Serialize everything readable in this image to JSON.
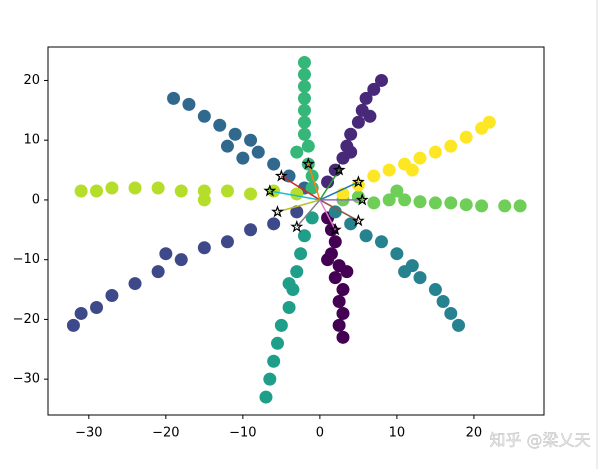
{
  "chart_data": {
    "type": "scatter",
    "xlim": [
      -35.3,
      29.1
    ],
    "ylim": [
      -36.0,
      25.6
    ],
    "xticks": [
      {
        "value": -30,
        "label": "−30"
      },
      {
        "value": -20,
        "label": "−20"
      },
      {
        "value": -10,
        "label": "−10"
      },
      0,
      10,
      20
    ],
    "yticks": [
      {
        "value": -30,
        "label": "−30"
      },
      {
        "value": -20,
        "label": "−20"
      },
      {
        "value": -10,
        "label": "−10"
      },
      0,
      10,
      20
    ],
    "series": [
      {
        "color": "#440154",
        "x": [
          1,
          1.5,
          2,
          1.5,
          2.5,
          2,
          3,
          2.5,
          3,
          2.5,
          3,
          1,
          3.5
        ],
        "y": [
          -3,
          -5,
          -7,
          -9,
          -11,
          -13,
          -15,
          -17,
          -19,
          -21,
          -23,
          -10,
          -12
        ]
      },
      {
        "color": "#482878",
        "x": [
          1,
          2,
          3,
          3.5,
          4,
          5,
          5.5,
          6,
          7,
          8,
          4,
          6.5
        ],
        "y": [
          3,
          5,
          7,
          9,
          11,
          13,
          15,
          17,
          18.5,
          20,
          8,
          14
        ]
      },
      {
        "color": "#3e4989",
        "x": [
          -3,
          -6,
          -9,
          -12,
          -15,
          -18,
          -21,
          -24,
          -27,
          -29,
          -31,
          -32,
          -20
        ],
        "y": [
          -2,
          -4,
          -5,
          -7,
          -8,
          -10,
          -12,
          -14,
          -16,
          -18,
          -19,
          -21,
          -9
        ]
      },
      {
        "color": "#31688e",
        "x": [
          -2,
          -4,
          -6,
          -8,
          -9,
          -11,
          -13,
          -15,
          -17,
          -19,
          -12,
          -10
        ],
        "y": [
          2,
          4,
          6,
          8,
          10,
          11,
          12.5,
          14,
          16,
          17,
          9,
          7
        ]
      },
      {
        "color": "#26828e",
        "x": [
          2,
          4,
          6,
          8,
          10,
          12,
          13,
          15,
          16,
          17,
          18,
          11
        ],
        "y": [
          -2,
          -4,
          -6,
          -7,
          -9,
          -11,
          -13,
          -15,
          -17,
          -19,
          -21,
          -12
        ]
      },
      {
        "color": "#1f9e89",
        "x": [
          -1,
          -2,
          -2.5,
          -3,
          -3.5,
          -4,
          -5,
          -5.5,
          -6,
          -6.5,
          -7,
          -4
        ],
        "y": [
          -3,
          -6,
          -9,
          -12,
          -15,
          -18,
          -21,
          -24,
          -27,
          -30,
          -33,
          -14
        ]
      },
      {
        "color": "#35b779",
        "x": [
          -1,
          -1,
          -1.5,
          -1.5,
          -2,
          -2,
          -2,
          -2,
          -2,
          -2,
          -2,
          -3
        ],
        "y": [
          2,
          4,
          6,
          9,
          11,
          13,
          15,
          17,
          19,
          21,
          23,
          8
        ]
      },
      {
        "color": "#6ece58",
        "x": [
          3,
          5,
          7,
          9,
          11,
          13,
          15,
          17,
          19,
          21,
          24,
          26,
          10
        ],
        "y": [
          0,
          0.5,
          -0.5,
          0,
          0,
          -0.3,
          -0.5,
          -0.5,
          -0.8,
          -1,
          -1,
          -1,
          1.5
        ]
      },
      {
        "color": "#b5de2b",
        "x": [
          -3,
          -6,
          -9,
          -12,
          -15,
          -18,
          -21,
          -24,
          -27,
          -29,
          -31,
          -15
        ],
        "y": [
          1,
          1.5,
          1,
          1.5,
          1.5,
          1.5,
          2,
          2,
          2,
          1.5,
          1.5,
          0
        ]
      },
      {
        "color": "#fde725",
        "x": [
          3,
          5,
          7,
          9,
          11,
          13,
          15,
          17,
          19,
          21,
          22,
          12
        ],
        "y": [
          1,
          2.5,
          4,
          5,
          6,
          7,
          8,
          9,
          10.5,
          12,
          13,
          5
        ]
      }
    ],
    "centers": {
      "marker": "star",
      "color": "#000000",
      "x": [
        -5,
        -1.5,
        2.5,
        5,
        5.5,
        5,
        2,
        -3,
        -5.5,
        -6.5
      ],
      "y": [
        4,
        6,
        5,
        3,
        0,
        -3.5,
        -5,
        -4.5,
        -2,
        1.5
      ],
      "line_colors": [
        "#d62728",
        "#ff7f0e",
        "#2ca02c",
        "#1f77b4",
        "#9467bd",
        "#8c564b",
        "#e377c2",
        "#7f7f7f",
        "#bcbd22",
        "#17becf"
      ]
    }
  },
  "watermark": "知乎 @梁乂天"
}
